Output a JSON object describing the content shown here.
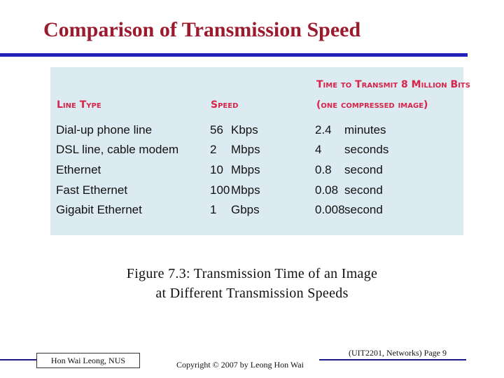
{
  "slide": {
    "title": "Comparison of Transmission Speed"
  },
  "table": {
    "headers": {
      "line_type": "Line Type",
      "speed": "Speed",
      "time_line1": "Time to Transmit 8 Million Bits",
      "time_line2": "(one compressed image)"
    },
    "rows": [
      {
        "line_type": "Dial-up phone line",
        "speed_value": "56",
        "speed_unit": "Kbps",
        "time_value": "2.4",
        "time_unit": "minutes"
      },
      {
        "line_type": "DSL line, cable modem",
        "speed_value": "2",
        "speed_unit": "Mbps",
        "time_value": "4",
        "time_unit": "seconds"
      },
      {
        "line_type": "Ethernet",
        "speed_value": "10",
        "speed_unit": "Mbps",
        "time_value": "0.8",
        "time_unit": "second"
      },
      {
        "line_type": "Fast Ethernet",
        "speed_value": "100",
        "speed_unit": "Mbps",
        "time_value": "0.08",
        "time_unit": "second"
      },
      {
        "line_type": "Gigabit Ethernet",
        "speed_value": "1",
        "speed_unit": "Gbps",
        "time_value": "0.008",
        "time_unit": "second"
      }
    ]
  },
  "caption": {
    "line1": "Figure 7.3:  Transmission Time of an Image",
    "line2": "at Different Transmission Speeds"
  },
  "footer": {
    "author": "Hon Wai Leong, NUS",
    "copyright": "Copyright © 2007 by Leong Hon Wai",
    "page": "(UIT2201, Networks) Page 9"
  },
  "colors": {
    "title": "#9c1a2e",
    "rule": "#2222bb",
    "header": "#d6244a",
    "panel": "#dcebf1"
  }
}
